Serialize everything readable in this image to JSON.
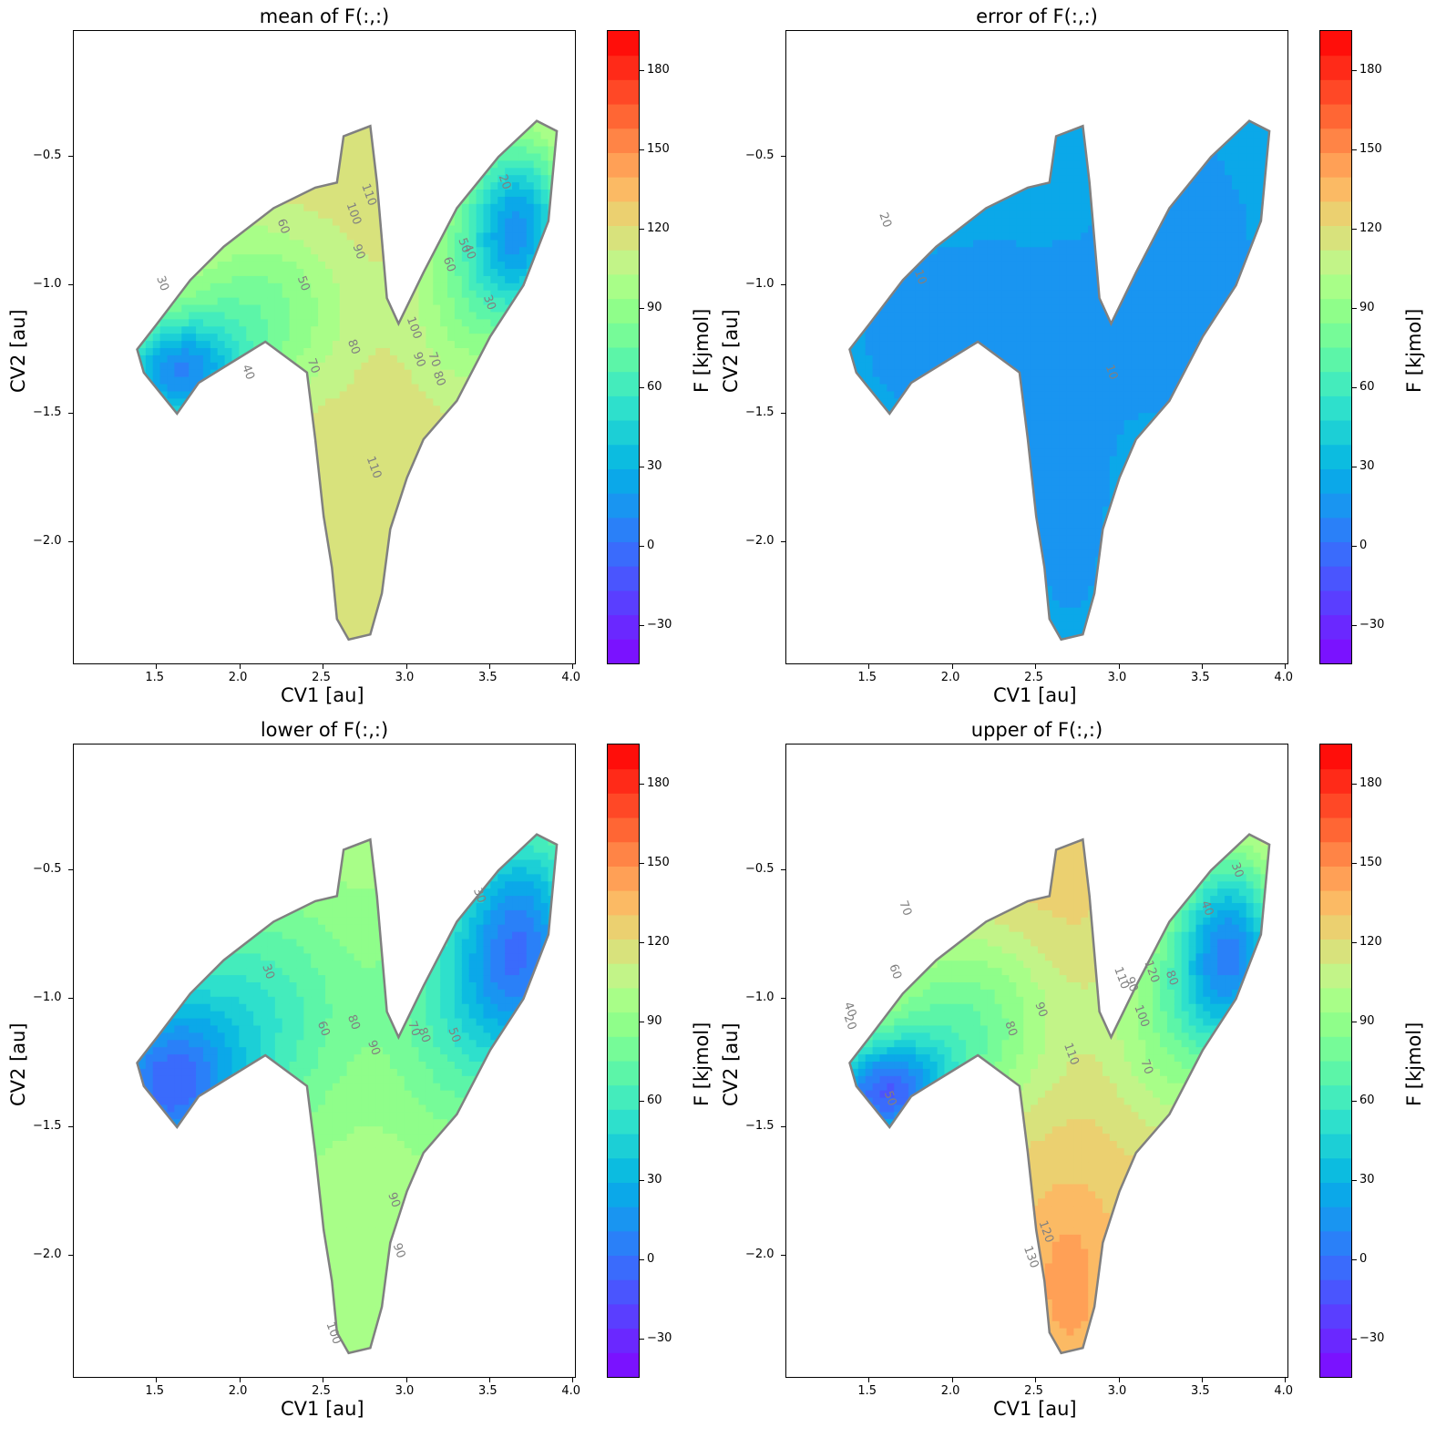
{
  "chart_data": [
    {
      "type": "contour",
      "title": "mean of F(:,:)",
      "xlabel": "CV1 [au]",
      "ylabel": "CV2 [au]",
      "colorbar_label": "F [kjmol]",
      "xlim": [
        1.0,
        4.02
      ],
      "ylim": [
        -2.48,
        -0.01
      ],
      "xticks": [
        1.5,
        2.0,
        2.5,
        3.0,
        3.5,
        4.0
      ],
      "xtick_labels": [
        "1.5",
        "2.0",
        "2.5",
        "3.0",
        "3.5",
        "4.0"
      ],
      "yticks": [
        -2.0,
        -1.5,
        -1.0,
        -0.5
      ],
      "ytick_labels": [
        "−2.0",
        "−1.5",
        "−1.0",
        "−0.5"
      ],
      "colorbar_range": [
        -45,
        195
      ],
      "colorbar_ticks": [
        -30,
        0,
        30,
        60,
        90,
        120,
        150,
        180
      ],
      "colorbar_tick_labels": [
        "−30",
        "0",
        "30",
        "60",
        "90",
        "120",
        "150",
        "180"
      ],
      "contour_labels": [
        "30",
        "40",
        "50",
        "60",
        "70",
        "80",
        "90",
        "100",
        "110",
        "110",
        "100",
        "90",
        "80",
        "70",
        "60",
        "50",
        "40",
        "30",
        "20"
      ],
      "grid": false
    },
    {
      "type": "contour",
      "title": "error of F(:,:)",
      "xlabel": "CV1 [au]",
      "ylabel": "CV2 [au]",
      "colorbar_label": "F [kjmol]",
      "xlim": [
        1.0,
        4.02
      ],
      "ylim": [
        -2.48,
        -0.01
      ],
      "xticks": [
        1.5,
        2.0,
        2.5,
        3.0,
        3.5,
        4.0
      ],
      "xtick_labels": [
        "1.5",
        "2.0",
        "2.5",
        "3.0",
        "3.5",
        "4.0"
      ],
      "yticks": [
        -2.0,
        -1.5,
        -1.0,
        -0.5
      ],
      "ytick_labels": [
        "−2.0",
        "−1.5",
        "−1.0",
        "−0.5"
      ],
      "colorbar_range": [
        -45,
        195
      ],
      "colorbar_ticks": [
        -30,
        0,
        30,
        60,
        90,
        120,
        150,
        180
      ],
      "colorbar_tick_labels": [
        "−30",
        "0",
        "30",
        "60",
        "90",
        "120",
        "150",
        "180"
      ],
      "contour_labels": [
        "20",
        "10",
        "10"
      ],
      "grid": false
    },
    {
      "type": "contour",
      "title": "lower of F(:,:)",
      "xlabel": "CV1 [au]",
      "ylabel": "CV2 [au]",
      "colorbar_label": "F [kjmol]",
      "xlim": [
        1.0,
        4.02
      ],
      "ylim": [
        -2.48,
        -0.01
      ],
      "xticks": [
        1.5,
        2.0,
        2.5,
        3.0,
        3.5,
        4.0
      ],
      "xtick_labels": [
        "1.5",
        "2.0",
        "2.5",
        "3.0",
        "3.5",
        "4.0"
      ],
      "yticks": [
        -2.0,
        -1.5,
        -1.0,
        -0.5
      ],
      "ytick_labels": [
        "−2.0",
        "−1.5",
        "−1.0",
        "−0.5"
      ],
      "colorbar_range": [
        -45,
        195
      ],
      "colorbar_ticks": [
        -30,
        0,
        30,
        60,
        90,
        120,
        150,
        180
      ],
      "colorbar_tick_labels": [
        "−30",
        "0",
        "30",
        "60",
        "90",
        "120",
        "150",
        "180"
      ],
      "contour_labels": [
        "30",
        "60",
        "80",
        "90",
        "80",
        "70",
        "50",
        "30",
        "90",
        "90",
        "100"
      ],
      "grid": false
    },
    {
      "type": "contour",
      "title": "upper of F(:,:)",
      "xlabel": "CV1 [au]",
      "ylabel": "CV2 [au]",
      "colorbar_label": "F [kjmol]",
      "xlim": [
        1.0,
        4.02
      ],
      "ylim": [
        -2.48,
        -0.01
      ],
      "xticks": [
        1.5,
        2.0,
        2.5,
        3.0,
        3.5,
        4.0
      ],
      "xtick_labels": [
        "1.5",
        "2.0",
        "2.5",
        "3.0",
        "3.5",
        "4.0"
      ],
      "yticks": [
        -2.0,
        -1.5,
        -1.0,
        -0.5
      ],
      "ytick_labels": [
        "−2.0",
        "−1.5",
        "−1.0",
        "−0.5"
      ],
      "colorbar_range": [
        -45,
        195
      ],
      "colorbar_ticks": [
        -30,
        0,
        30,
        60,
        90,
        120,
        150,
        180
      ],
      "colorbar_tick_labels": [
        "−30",
        "0",
        "30",
        "60",
        "90",
        "120",
        "150",
        "180"
      ],
      "contour_labels": [
        "20",
        "40",
        "50",
        "60",
        "70",
        "80",
        "90",
        "110",
        "100",
        "120",
        "130",
        "120",
        "110",
        "90",
        "80",
        "70",
        "40",
        "30"
      ],
      "grid": false
    }
  ],
  "colors": {
    "contour_line": "#808080",
    "colormap": [
      "#7a12ff",
      "#6a28ff",
      "#5a3eff",
      "#4a55fe",
      "#3a6bfc",
      "#2a80f8",
      "#1995f1",
      "#0ba8e9",
      "#0cbce0",
      "#1ccfd6",
      "#2ee0cc",
      "#44ecbc",
      "#5cf5a8",
      "#76fb98",
      "#8ffe8a",
      "#a8fe88",
      "#c2f488",
      "#d8e27c",
      "#ebd070",
      "#fbba64",
      "#ffa056",
      "#ff8446",
      "#ff6634",
      "#ff4826",
      "#ff2a18",
      "#ff0e0a"
    ]
  }
}
